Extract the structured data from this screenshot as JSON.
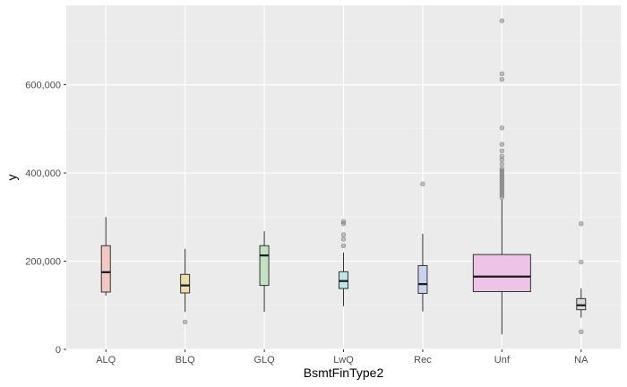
{
  "chart_data": {
    "type": "boxplot",
    "xlabel": "BsmtFinType2",
    "ylabel": "y",
    "ylim": [
      0,
      780000
    ],
    "y_ticks": [
      0,
      200000,
      400000,
      600000
    ],
    "y_tick_labels": [
      "0",
      "200,000",
      "400,000",
      "600,000"
    ],
    "grid": true,
    "categories": [
      "ALQ",
      "BLQ",
      "GLQ",
      "LwQ",
      "Rec",
      "Unf",
      "NA"
    ],
    "boxes": [
      {
        "category": "ALQ",
        "whisker_low": 122000,
        "q1": 130000,
        "median": 175000,
        "q3": 235000,
        "whisker_high": 300000,
        "outliers": [],
        "fill": "#f4c7c3"
      },
      {
        "category": "BLQ",
        "whisker_low": 85000,
        "q1": 128000,
        "median": 145000,
        "q3": 170000,
        "whisker_high": 228000,
        "outliers": [
          62000
        ],
        "fill": "#ecdcae"
      },
      {
        "category": "GLQ",
        "whisker_low": 85000,
        "q1": 145000,
        "median": 213000,
        "q3": 235000,
        "whisker_high": 268000,
        "outliers": [],
        "fill": "#c3e2c2"
      },
      {
        "category": "LwQ",
        "whisker_low": 98000,
        "q1": 138000,
        "median": 155000,
        "q3": 176000,
        "whisker_high": 220000,
        "outliers": [
          235000,
          250000,
          260000,
          285000,
          290000
        ],
        "fill": "#bfe4ea"
      },
      {
        "category": "Rec",
        "whisker_low": 86000,
        "q1": 127000,
        "median": 148000,
        "q3": 190000,
        "whisker_high": 262000,
        "outliers": [
          375000
        ],
        "fill": "#c9d3f0"
      },
      {
        "category": "Unf",
        "whisker_low": 34000,
        "q1": 131000,
        "median": 165000,
        "q3": 215000,
        "whisker_high": 340000,
        "outliers": [
          345000,
          350000,
          355000,
          360000,
          365000,
          370000,
          375000,
          380000,
          385000,
          390000,
          395000,
          400000,
          405000,
          410000,
          420000,
          430000,
          438000,
          450000,
          465000,
          502000,
          612000,
          625000,
          745000
        ],
        "fill": "#edc4e8"
      },
      {
        "category": "NA",
        "whisker_low": 72000,
        "q1": 90000,
        "median": 100000,
        "q3": 115000,
        "whisker_high": 138000,
        "outliers": [
          40000,
          198000,
          285000
        ],
        "fill": "#d9d9d9"
      }
    ]
  }
}
